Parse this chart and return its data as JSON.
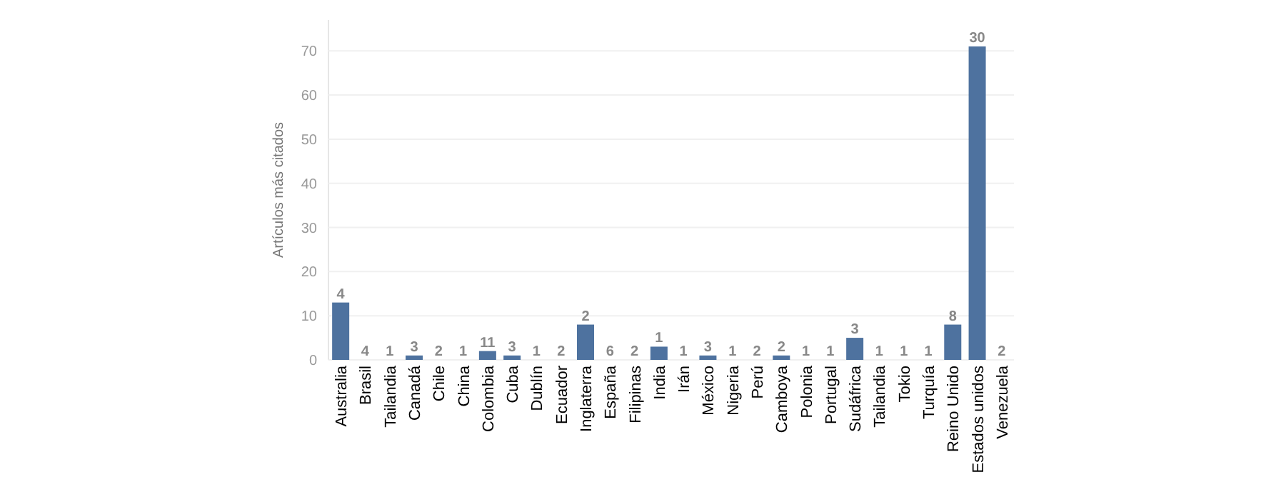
{
  "chart_data": {
    "type": "bar",
    "ylabel": "Artículos más citados",
    "categories": [
      "Australia",
      "Brasil",
      "Tailandia",
      "Canadá",
      "Chile",
      "China",
      "Colombia",
      "Cuba",
      "Dublín",
      "Ecuador",
      "Inglaterra",
      "España",
      "Filipinas",
      "India",
      "Irán",
      "México",
      "Nigeria",
      "Perú",
      "Camboya",
      "Polonia",
      "Portugal",
      "Sudáfrica",
      "Tailandia",
      "Tokio",
      "Turquía",
      "Reino Unido",
      "Estados unidos",
      "Venezuela"
    ],
    "values": [
      13,
      0,
      0,
      1,
      0,
      0,
      2,
      1,
      0,
      0,
      8,
      0,
      0,
      3,
      0,
      1,
      0,
      0,
      1,
      0,
      0,
      5,
      0,
      0,
      0,
      8,
      71,
      0
    ],
    "annotations": [
      {
        "text": "4",
        "x": "Australia",
        "y": 13
      },
      {
        "text": "4",
        "x": "Brasil",
        "y": 0
      },
      {
        "text": "1",
        "x": "Tailandia",
        "y": 0
      },
      {
        "text": "3",
        "x": "Canadá",
        "y": 1
      },
      {
        "text": "2",
        "x": "Chile",
        "y": 0
      },
      {
        "text": "1",
        "x": "China",
        "y": 0
      },
      {
        "text": "11",
        "x": "Colombia",
        "y": 2
      },
      {
        "text": "3",
        "x": "Cuba",
        "y": 1
      },
      {
        "text": "1",
        "x": "Dublín",
        "y": 0
      },
      {
        "text": "2",
        "x": "Ecuador",
        "y": 0
      },
      {
        "text": "2",
        "x": "Inglaterra",
        "y": 8
      },
      {
        "text": "6",
        "x": "España",
        "y": 0
      },
      {
        "text": "2",
        "x": "Filipinas",
        "y": 0
      },
      {
        "text": "1",
        "x": "India",
        "y": 3
      },
      {
        "text": "1",
        "x": "Irán",
        "y": 0
      },
      {
        "text": "3",
        "x": "México",
        "y": 1
      },
      {
        "text": "1",
        "x": "Nigeria",
        "y": 0
      },
      {
        "text": "2",
        "x": "Perú",
        "y": 0
      },
      {
        "text": "2",
        "x": "Camboya",
        "y": 1
      },
      {
        "text": "1",
        "x": "Polonia",
        "y": 0
      },
      {
        "text": "1",
        "x": "Portugal",
        "y": 0
      },
      {
        "text": "3",
        "x": "Sudáfrica",
        "y": 5
      },
      "1",
      {
        "text": "1",
        "x": "Tokio",
        "y": 0
      },
      {
        "text": "1",
        "x": "Turquía",
        "y": 0
      },
      {
        "text": "8",
        "x": "Reino Unido",
        "y": 8
      },
      {
        "text": "30",
        "x": "Estados unidos",
        "y": 71
      },
      {
        "text": "2",
        "x": "Venezuela",
        "y": 0
      }
    ],
    "color": "#4e729f",
    "ylim": [
      0,
      77
    ],
    "yticks": [
      0,
      10,
      20,
      30,
      40,
      50,
      60,
      70
    ],
    "grid": "y"
  }
}
